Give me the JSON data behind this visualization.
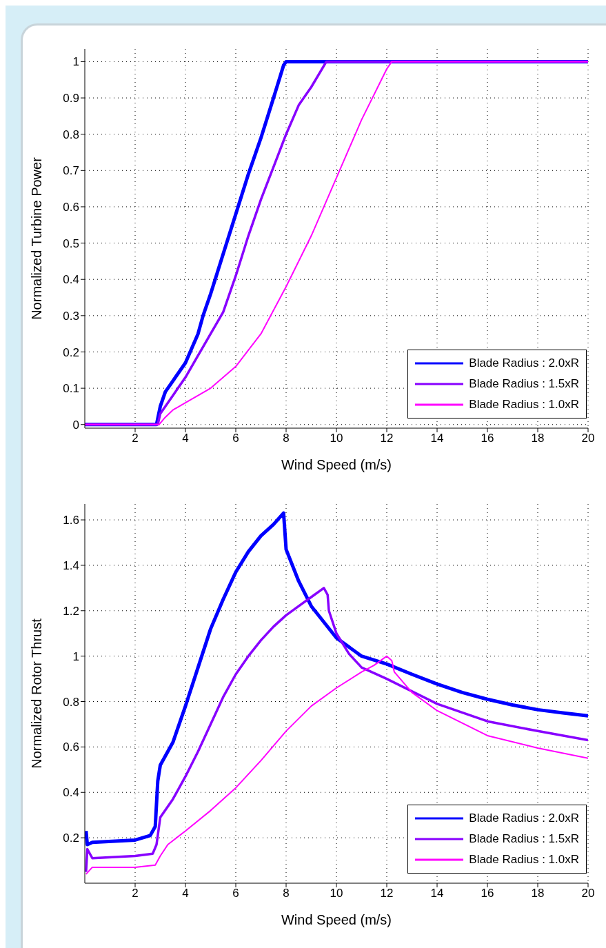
{
  "chart_data": [
    {
      "type": "line",
      "xlabel": "Wind Speed (m/s)",
      "ylabel": "Normalized Turbine Power",
      "xlim": [
        0,
        20
      ],
      "xticks": [
        2,
        4,
        6,
        8,
        10,
        12,
        14,
        16,
        18,
        20
      ],
      "ylim": [
        -0.01,
        1.035
      ],
      "yticks": [
        0,
        0.1,
        0.2,
        0.3,
        0.4,
        0.5,
        0.6,
        0.7,
        0.8,
        0.9,
        1
      ],
      "grid": true,
      "legend": "bottom right",
      "series": [
        {
          "name": "Blade Radius : 2.0xR",
          "color": "#0000ff",
          "x": [
            0,
            2.85,
            3.0,
            3.2,
            3.5,
            4,
            4.5,
            4.7,
            5,
            5.5,
            6,
            6.5,
            7,
            7.5,
            7.9,
            8,
            20
          ],
          "values": [
            0,
            0,
            0.05,
            0.09,
            0.12,
            0.17,
            0.25,
            0.3,
            0.36,
            0.47,
            0.58,
            0.69,
            0.79,
            0.9,
            0.99,
            1,
            1
          ]
        },
        {
          "name": "Blade Radius : 1.5xR",
          "color": "#8800ff",
          "x": [
            0,
            2.9,
            3.0,
            3.2,
            3.5,
            4,
            4.5,
            5,
            5.5,
            6,
            6.5,
            7,
            7.5,
            8,
            8.5,
            9,
            9.6,
            20
          ],
          "values": [
            0,
            0,
            0.03,
            0.05,
            0.08,
            0.13,
            0.19,
            0.25,
            0.31,
            0.41,
            0.52,
            0.62,
            0.71,
            0.8,
            0.88,
            0.93,
            1,
            1
          ]
        },
        {
          "name": "Blade Radius : 1.0xR",
          "color": "#ff00ff",
          "x": [
            0,
            2.95,
            3.2,
            3.5,
            4,
            5,
            6,
            7,
            8,
            9,
            10,
            11,
            12,
            12.2,
            20
          ],
          "values": [
            0,
            0,
            0.02,
            0.04,
            0.06,
            0.1,
            0.16,
            0.25,
            0.38,
            0.52,
            0.68,
            0.84,
            0.98,
            1,
            1
          ]
        }
      ]
    },
    {
      "type": "line",
      "xlabel": "Wind Speed (m/s)",
      "ylabel": "Normalized Rotor Thrust",
      "xlim": [
        0,
        20
      ],
      "xticks": [
        2,
        4,
        6,
        8,
        10,
        12,
        14,
        16,
        18,
        20
      ],
      "ylim": [
        0,
        1.67
      ],
      "yticks": [
        0.2,
        0.4,
        0.6,
        0.8,
        1,
        1.2,
        1.4,
        1.6
      ],
      "grid": true,
      "legend": "bottom right",
      "series": [
        {
          "name": "Blade Radius : 2.0xR",
          "color": "#0000ff",
          "x": [
            0.05,
            0.1,
            0.3,
            2,
            2.6,
            2.8,
            2.9,
            3.0,
            3.5,
            4,
            4.5,
            5,
            5.5,
            6,
            6.5,
            7,
            7.5,
            7.9,
            8.0,
            8.5,
            9,
            9.5,
            10,
            11,
            12,
            13,
            14,
            15,
            16,
            17,
            18,
            19,
            20
          ],
          "values": [
            0.23,
            0.17,
            0.18,
            0.19,
            0.21,
            0.25,
            0.45,
            0.52,
            0.62,
            0.78,
            0.95,
            1.12,
            1.25,
            1.37,
            1.46,
            1.53,
            1.58,
            1.63,
            1.47,
            1.33,
            1.22,
            1.15,
            1.08,
            1.0,
            0.965,
            0.92,
            0.877,
            0.84,
            0.81,
            0.785,
            0.764,
            0.75,
            0.737
          ]
        },
        {
          "name": "Blade Radius : 1.5xR",
          "color": "#8800ff",
          "x": [
            0.05,
            0.1,
            0.3,
            2,
            2.7,
            2.85,
            3.0,
            3.5,
            4,
            4.5,
            5,
            5.5,
            6,
            6.5,
            7,
            7.5,
            8,
            8.5,
            9,
            9.5,
            9.65,
            9.7,
            10,
            10.5,
            11,
            12,
            14,
            16,
            18,
            20
          ],
          "values": [
            0.05,
            0.15,
            0.11,
            0.12,
            0.13,
            0.17,
            0.29,
            0.37,
            0.47,
            0.58,
            0.7,
            0.82,
            0.92,
            1.0,
            1.07,
            1.13,
            1.18,
            1.22,
            1.26,
            1.3,
            1.27,
            1.2,
            1.1,
            1.01,
            0.95,
            0.9,
            0.79,
            0.713,
            0.67,
            0.63
          ]
        },
        {
          "name": "Blade Radius : 1.0xR",
          "color": "#ff00ff",
          "x": [
            0.05,
            0.3,
            2,
            2.8,
            3.0,
            3.3,
            4,
            5,
            6,
            7,
            8,
            9,
            10,
            11,
            11.5,
            12,
            12.2,
            12.3,
            13,
            14,
            16,
            18,
            20
          ],
          "values": [
            0.04,
            0.07,
            0.07,
            0.08,
            0.12,
            0.17,
            0.23,
            0.32,
            0.42,
            0.54,
            0.67,
            0.78,
            0.86,
            0.93,
            0.96,
            1.0,
            0.98,
            0.93,
            0.84,
            0.76,
            0.65,
            0.595,
            0.55
          ]
        }
      ]
    }
  ]
}
